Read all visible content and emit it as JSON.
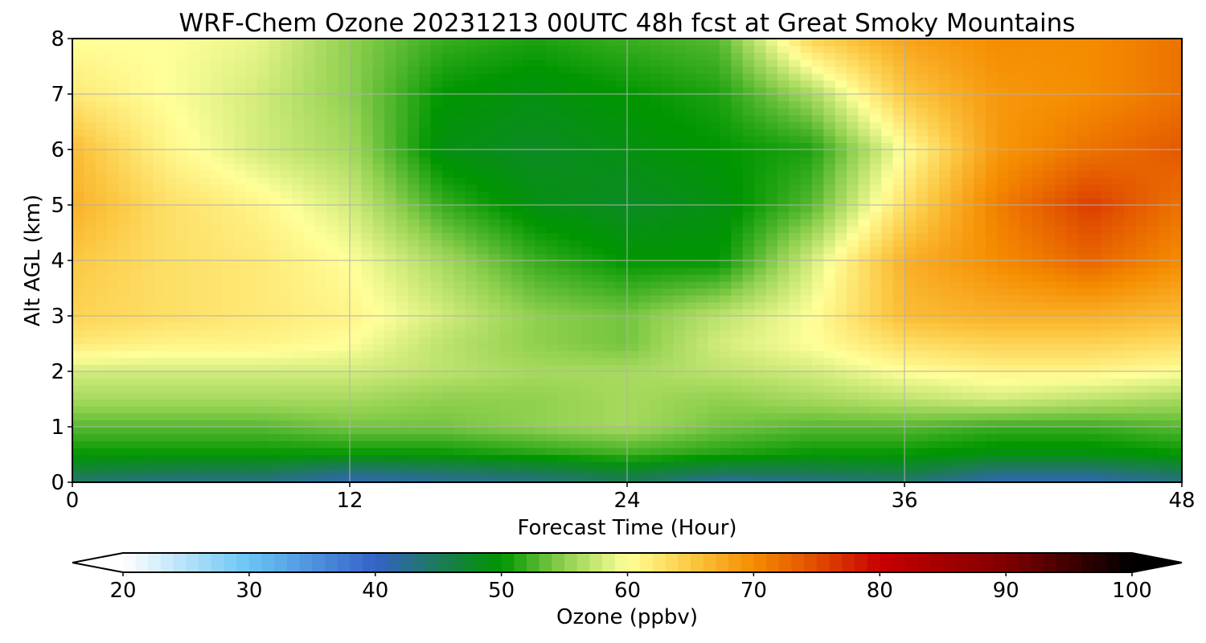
{
  "chart_data": {
    "type": "heatmap",
    "title": "WRF-Chem Ozone  20231213 00UTC 48h fcst at Great Smoky Mountains",
    "xlabel": "Forecast Time (Hour)",
    "ylabel": "Alt AGL (km)",
    "xlim": [
      0,
      48
    ],
    "ylim": [
      0,
      8
    ],
    "xticks": [
      0,
      12,
      24,
      36,
      48
    ],
    "yticks": [
      0,
      1,
      2,
      3,
      4,
      5,
      6,
      7,
      8
    ],
    "grid": true,
    "x": [
      0,
      4,
      8,
      12,
      16,
      20,
      24,
      28,
      32,
      36,
      40,
      44,
      48
    ],
    "y": [
      0,
      0.25,
      0.5,
      1,
      1.5,
      2,
      2.5,
      3,
      4,
      5,
      6,
      7,
      8
    ],
    "z": [
      [
        44,
        43,
        43,
        41,
        42,
        43,
        45,
        42,
        43,
        44,
        41,
        41,
        43
      ],
      [
        47,
        46,
        46,
        44,
        45,
        46,
        48,
        46,
        46,
        47,
        44,
        44,
        46
      ],
      [
        50,
        50,
        50,
        50,
        50,
        51,
        52,
        51,
        50,
        50,
        49,
        49,
        50
      ],
      [
        53,
        53,
        53,
        54,
        54,
        55,
        56,
        54,
        53,
        53,
        52,
        52,
        53
      ],
      [
        56,
        56,
        56,
        56,
        55,
        55,
        56,
        55,
        56,
        57,
        58,
        57,
        56
      ],
      [
        58,
        58,
        58,
        58,
        57,
        56,
        56,
        57,
        58,
        60,
        61,
        61,
        60
      ],
      [
        62,
        61,
        61,
        60,
        57,
        55,
        54,
        58,
        60,
        63,
        64,
        64,
        63
      ],
      [
        64,
        63,
        62,
        61,
        58,
        55,
        54,
        57,
        60,
        66,
        67,
        67,
        66
      ],
      [
        65,
        63,
        62,
        60,
        56,
        52,
        50,
        50,
        58,
        67,
        70,
        73,
        70
      ],
      [
        67,
        63,
        61,
        58,
        52,
        49,
        48,
        49,
        53,
        63,
        71,
        76,
        72
      ],
      [
        66,
        61,
        58,
        56,
        49,
        48,
        49,
        50,
        51,
        60,
        69,
        72,
        74
      ],
      [
        62,
        60,
        58,
        55,
        50,
        49,
        50,
        51,
        56,
        65,
        69,
        70,
        72
      ],
      [
        60,
        60,
        59,
        55,
        52,
        51,
        52,
        53,
        64,
        68,
        70,
        70,
        72
      ]
    ],
    "colorbar": {
      "label": "Ozone  (ppbv)",
      "min": 20,
      "max": 100,
      "ticks": [
        20,
        30,
        40,
        50,
        60,
        70,
        80,
        90,
        100
      ],
      "extend": "both",
      "orientation": "horizontal",
      "stops": [
        {
          "v": 20,
          "c": "#ffffff"
        },
        {
          "v": 30,
          "c": "#6ac4f4"
        },
        {
          "v": 40,
          "c": "#3462c8"
        },
        {
          "v": 45,
          "c": "#1d7a58"
        },
        {
          "v": 50,
          "c": "#009600"
        },
        {
          "v": 55,
          "c": "#90d050"
        },
        {
          "v": 60,
          "c": "#ffff99"
        },
        {
          "v": 65,
          "c": "#fcc843"
        },
        {
          "v": 70,
          "c": "#f58c00"
        },
        {
          "v": 75,
          "c": "#e04c00"
        },
        {
          "v": 80,
          "c": "#c80000"
        },
        {
          "v": 90,
          "c": "#800000"
        },
        {
          "v": 100,
          "c": "#000000"
        }
      ]
    }
  }
}
